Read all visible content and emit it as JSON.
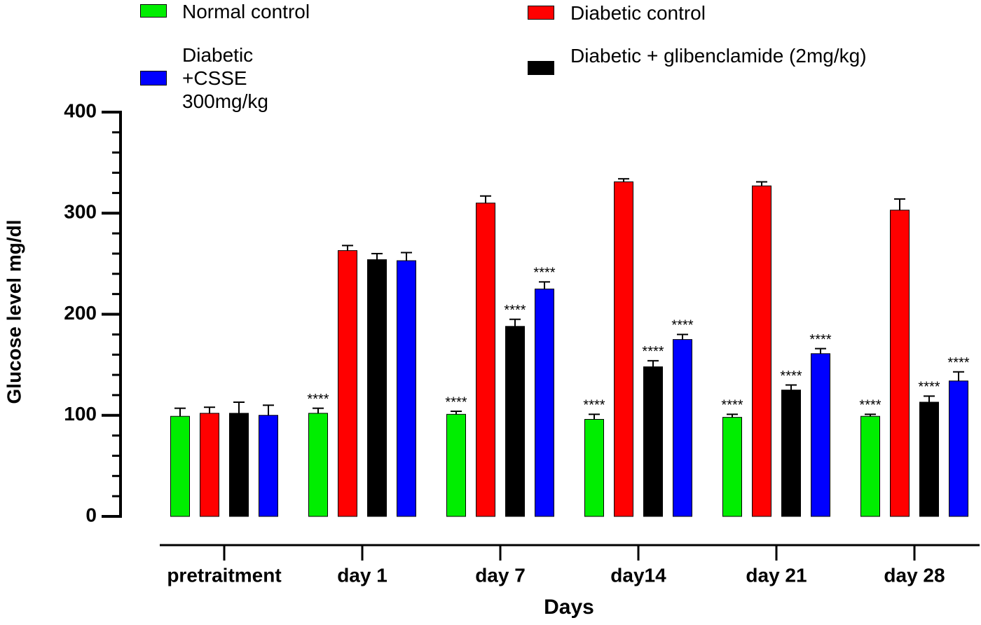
{
  "chart_data": {
    "type": "bar",
    "y_label": "Glucose level mg/dl",
    "x_label": "Days",
    "categories": [
      "pretraitment",
      "day 1",
      "day 7",
      "day14",
      "day 21",
      "day 28"
    ],
    "series": [
      {
        "name": "Normal control",
        "color": "#00ee00",
        "values": [
          99,
          102,
          101,
          96,
          98,
          99
        ],
        "errors": [
          8,
          5,
          3,
          5,
          3,
          2
        ],
        "annotations": [
          null,
          "****",
          "****",
          "****",
          "****",
          "****"
        ]
      },
      {
        "name": "Diabetic control",
        "color": "#ff0000",
        "values": [
          102,
          263,
          310,
          331,
          327,
          303
        ],
        "errors": [
          6,
          5,
          7,
          3,
          4,
          11
        ],
        "annotations": [
          null,
          null,
          null,
          null,
          null,
          null
        ]
      },
      {
        "name": "Diabetic + glibenclamide (2mg/kg)",
        "color": "#000000",
        "values": [
          102,
          254,
          188,
          148,
          125,
          113
        ],
        "errors": [
          11,
          6,
          7,
          6,
          5,
          6
        ],
        "annotations": [
          null,
          null,
          "****",
          "****",
          "****",
          "****"
        ]
      },
      {
        "name": "Diabetic +CSSE 300mg/kg",
        "color": "#0000ff",
        "values": [
          100,
          253,
          225,
          175,
          161,
          134
        ],
        "errors": [
          10,
          8,
          7,
          5,
          5,
          9
        ],
        "annotations": [
          null,
          null,
          "****",
          "****",
          "****",
          "****"
        ]
      }
    ],
    "ylim": [
      0,
      400
    ],
    "yticks": [
      0,
      100,
      200,
      300,
      400
    ],
    "yminorticks": [
      20,
      40,
      60,
      80,
      120,
      140,
      160,
      180,
      220,
      240,
      260,
      280,
      320,
      340,
      360,
      380
    ]
  }
}
